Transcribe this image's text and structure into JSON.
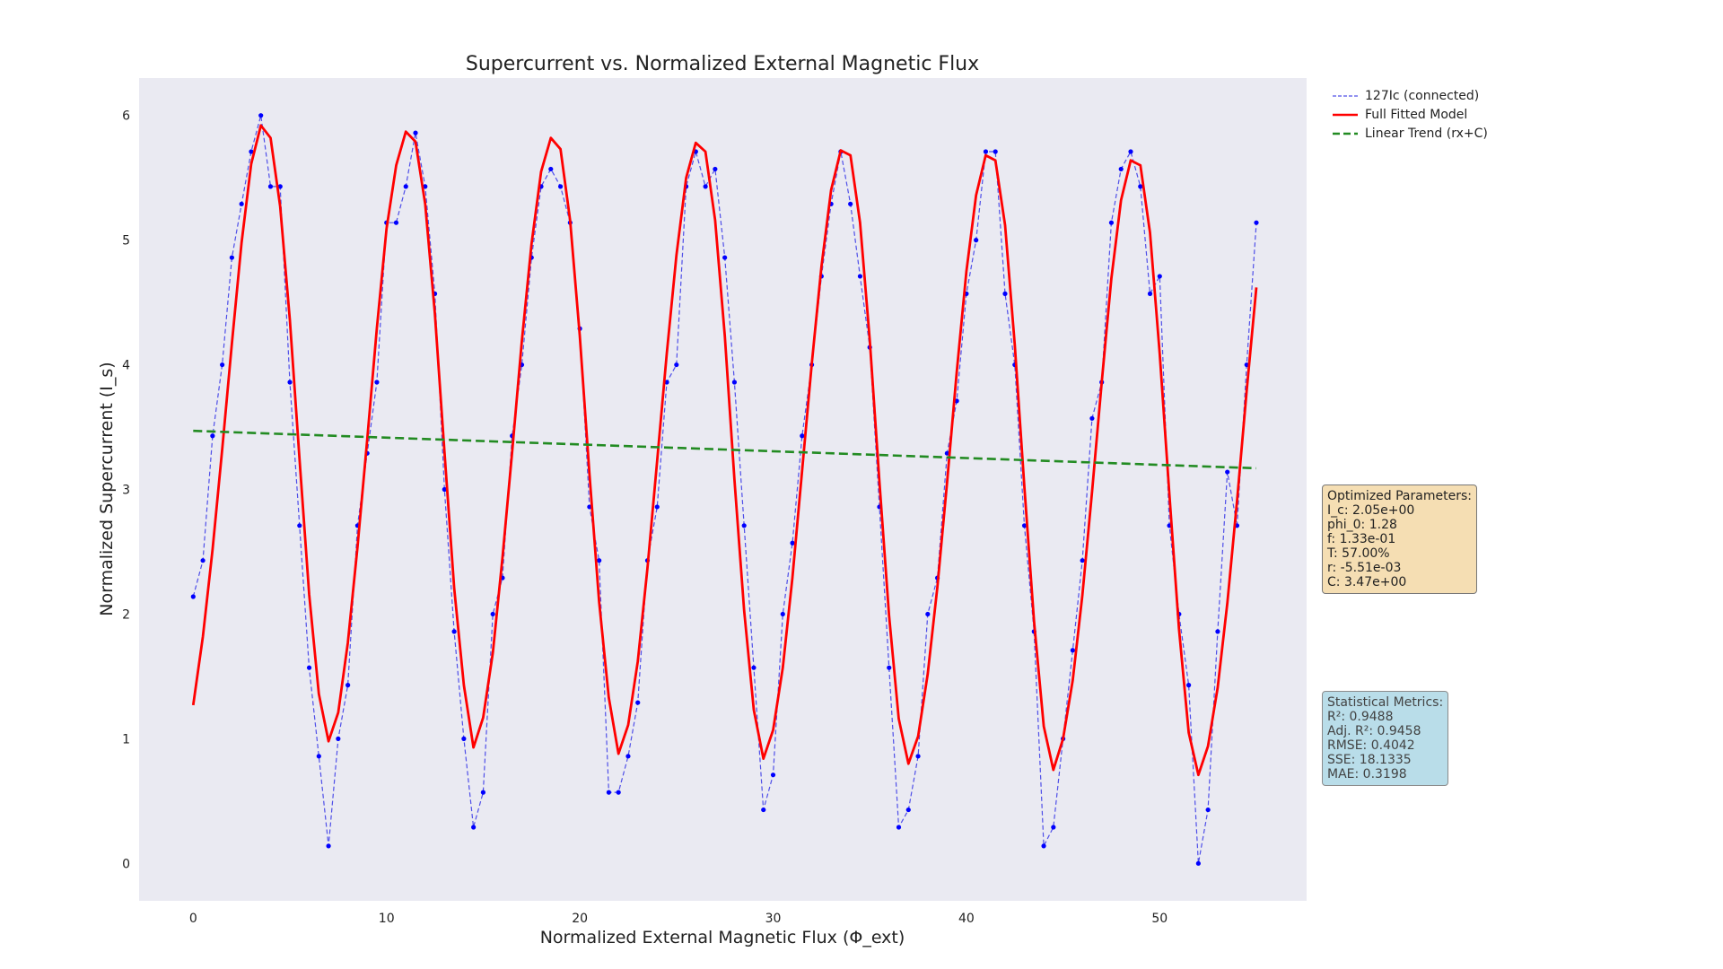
{
  "chart_data": {
    "type": "line",
    "title": "Supercurrent vs. Normalized External Magnetic Flux",
    "xlabel": "Normalized External Magnetic Flux (Φ_ext)",
    "ylabel": "Normalized Supercurrent (I_s)",
    "xlim": [
      -2.8,
      57.6
    ],
    "ylim": [
      -0.3,
      6.3
    ],
    "xticks": [
      0,
      10,
      20,
      30,
      40,
      50
    ],
    "yticks": [
      0,
      1,
      2,
      3,
      4,
      5,
      6
    ],
    "grid": false,
    "legend_position": "outside-top-right",
    "series": [
      {
        "name": "127Ic (connected)",
        "style": "dashed-markers",
        "color": "#0000ff",
        "x": [
          0,
          0.5,
          1,
          1.5,
          2,
          2.5,
          3,
          3.5,
          4,
          4.5,
          5,
          5.5,
          6,
          6.5,
          7,
          7.5,
          8,
          8.5,
          9,
          9.5,
          10,
          10.5,
          11,
          11.5,
          12,
          12.5,
          13,
          13.5,
          14,
          14.5,
          15,
          15.5,
          16,
          16.5,
          17,
          17.5,
          18,
          18.5,
          19,
          19.5,
          20,
          20.5,
          21,
          21.5,
          22,
          22.5,
          23,
          23.5,
          24,
          24.5,
          25,
          25.5,
          26,
          26.5,
          27,
          27.5,
          28,
          28.5,
          29,
          29.5,
          30,
          30.5,
          31,
          31.5,
          32,
          32.5,
          33,
          33.5,
          34,
          34.5,
          35,
          35.5,
          36,
          36.5,
          37,
          37.5,
          38,
          38.5,
          39,
          39.5,
          40,
          40.5,
          41,
          41.5,
          42,
          42.5,
          43,
          43.5,
          44,
          44.5,
          45,
          45.5,
          46,
          46.5,
          47,
          47.5,
          48,
          48.5,
          49,
          49.5,
          50,
          50.5,
          51,
          51.5,
          52,
          52.5,
          53,
          53.5,
          54,
          54.5,
          55
        ],
        "y": [
          2.14,
          2.43,
          3.43,
          4.0,
          4.86,
          5.29,
          5.71,
          6.0,
          5.43,
          5.43,
          3.86,
          2.71,
          1.57,
          0.86,
          0.14,
          1.0,
          1.43,
          2.71,
          3.29,
          3.86,
          5.14,
          5.14,
          5.43,
          5.86,
          5.43,
          4.57,
          3.0,
          1.86,
          1.0,
          0.29,
          0.57,
          2.0,
          2.29,
          3.43,
          4.0,
          4.86,
          5.43,
          5.57,
          5.43,
          5.14,
          4.29,
          2.86,
          2.43,
          0.57,
          0.57,
          0.86,
          1.29,
          2.43,
          2.86,
          3.86,
          4.0,
          5.43,
          5.71,
          5.43,
          5.57,
          4.86,
          3.86,
          2.71,
          1.57,
          0.43,
          0.71,
          2.0,
          2.57,
          3.43,
          4.0,
          4.71,
          5.29,
          5.71,
          5.29,
          4.71,
          4.14,
          2.86,
          1.57,
          0.29,
          0.43,
          0.86,
          2.0,
          2.29,
          3.29,
          3.71,
          4.57,
          5.0,
          5.71,
          5.71,
          4.57,
          4.0,
          2.71,
          1.86,
          0.14,
          0.29,
          1.0,
          1.71,
          2.43,
          3.57,
          3.86,
          5.14,
          5.57,
          5.71,
          5.43,
          4.57,
          4.71,
          2.71,
          2.0,
          1.43,
          0.0,
          0.43,
          1.86,
          3.14,
          2.71,
          4.0,
          5.14
        ]
      },
      {
        "name": "Full Fitted Model",
        "style": "solid",
        "color": "#ff0000",
        "x": [
          0,
          0.5,
          1,
          1.5,
          2,
          2.5,
          3,
          3.5,
          4,
          4.5,
          5,
          5.5,
          6,
          6.5,
          7,
          7.5,
          8,
          8.5,
          9,
          9.5,
          10,
          10.5,
          11,
          11.5,
          12,
          12.5,
          13,
          13.5,
          14,
          14.5,
          15,
          15.5,
          16,
          16.5,
          17,
          17.5,
          18,
          18.5,
          19,
          19.5,
          20,
          20.5,
          21,
          21.5,
          22,
          22.5,
          23,
          23.5,
          24,
          24.5,
          25,
          25.5,
          26,
          26.5,
          27,
          27.5,
          28,
          28.5,
          29,
          29.5,
          30,
          30.5,
          31,
          31.5,
          32,
          32.5,
          33,
          33.5,
          34,
          34.5,
          35,
          35.5,
          36,
          36.5,
          37,
          37.5,
          38,
          38.5,
          39,
          39.5,
          40,
          40.5,
          41,
          41.5,
          42,
          42.5,
          43,
          43.5,
          44,
          44.5,
          45,
          45.5,
          46,
          46.5,
          47,
          47.5,
          48,
          48.5,
          49,
          49.5,
          50,
          50.5,
          51,
          51.5,
          52,
          52.5,
          53,
          53.5,
          54,
          54.5,
          55
        ],
        "y": [
          1.27,
          1.82,
          2.52,
          3.32,
          4.17,
          4.98,
          5.61,
          5.92,
          5.82,
          5.27,
          4.36,
          3.24,
          2.16,
          1.36,
          0.98,
          1.21,
          1.77,
          2.54,
          3.4,
          4.29,
          5.09,
          5.6,
          5.87,
          5.79,
          5.29,
          4.41,
          3.3,
          2.21,
          1.43,
          0.93,
          1.17,
          1.69,
          2.45,
          3.3,
          4.19,
          4.97,
          5.55,
          5.82,
          5.73,
          5.16,
          4.23,
          3.12,
          2.1,
          1.33,
          0.88,
          1.11,
          1.62,
          2.37,
          3.23,
          4.09,
          4.88,
          5.5,
          5.78,
          5.71,
          5.16,
          4.23,
          3.08,
          2.03,
          1.23,
          0.84,
          1.07,
          1.57,
          2.29,
          3.15,
          4.01,
          4.79,
          5.4,
          5.72,
          5.68,
          5.14,
          4.2,
          3.06,
          1.99,
          1.16,
          0.8,
          1.02,
          1.52,
          2.22,
          3.06,
          3.94,
          4.75,
          5.36,
          5.68,
          5.64,
          5.12,
          4.16,
          3.02,
          1.94,
          1.1,
          0.75,
          1.0,
          1.47,
          2.15,
          2.98,
          3.86,
          4.69,
          5.32,
          5.64,
          5.6,
          5.06,
          4.09,
          2.96,
          1.88,
          1.05,
          0.71,
          0.94,
          1.41,
          2.09,
          2.91,
          3.79,
          4.62
        ]
      },
      {
        "name": "Linear Trend (rx+C)",
        "style": "dashed",
        "color": "#228b22",
        "x": [
          0,
          55
        ],
        "y": [
          3.47,
          3.17
        ]
      }
    ],
    "params_box": {
      "title": "Optimized Parameters:",
      "lines": [
        "I_c: 2.05e+00",
        "phi_0: 1.28",
        "f: 1.33e-01",
        "T: 57.00%",
        "r: -5.51e-03",
        "C: 3.47e+00"
      ]
    },
    "metrics_box": {
      "title": "Statistical Metrics:",
      "lines": [
        "R²: 0.9488",
        "Adj. R²: 0.9458",
        "RMSE: 0.4042",
        "SSE: 18.1335",
        "MAE: 0.3198"
      ]
    }
  }
}
